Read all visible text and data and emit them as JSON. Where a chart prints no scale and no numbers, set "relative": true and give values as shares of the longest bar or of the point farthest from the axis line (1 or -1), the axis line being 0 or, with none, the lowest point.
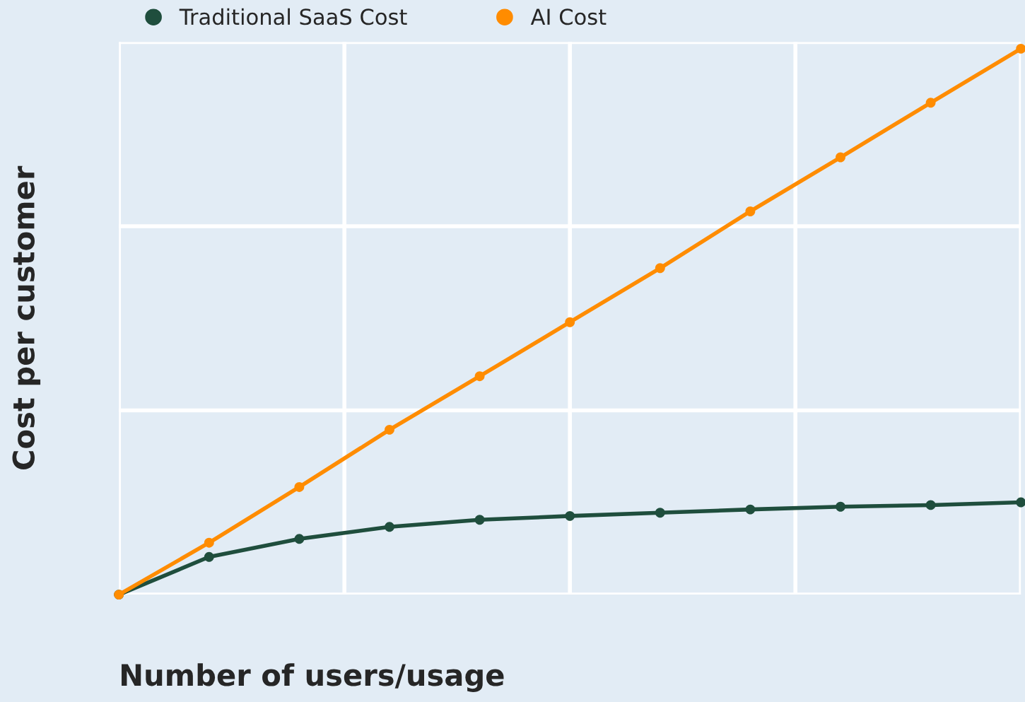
{
  "chart_data": {
    "type": "line",
    "relative": true,
    "xlabel": "Number of users/usage",
    "ylabel": "Cost per customer",
    "categories": [
      null,
      null,
      null,
      null,
      null,
      null,
      null,
      null,
      null,
      null,
      null
    ],
    "series": [
      {
        "name": "Traditional SaaS Cost",
        "color": "#1f4e3d",
        "values": [
          0,
          0.069,
          0.102,
          0.124,
          0.137,
          0.144,
          0.15,
          0.156,
          0.161,
          0.164,
          0.169
        ]
      },
      {
        "name": "AI Cost",
        "color": "#ff8c00",
        "values": [
          0,
          0.095,
          0.197,
          0.302,
          0.4,
          0.499,
          0.598,
          0.702,
          0.801,
          0.901,
          1
        ]
      }
    ],
    "grid": true,
    "legend": "top left",
    "marker": "circle",
    "line_style": "solid"
  }
}
